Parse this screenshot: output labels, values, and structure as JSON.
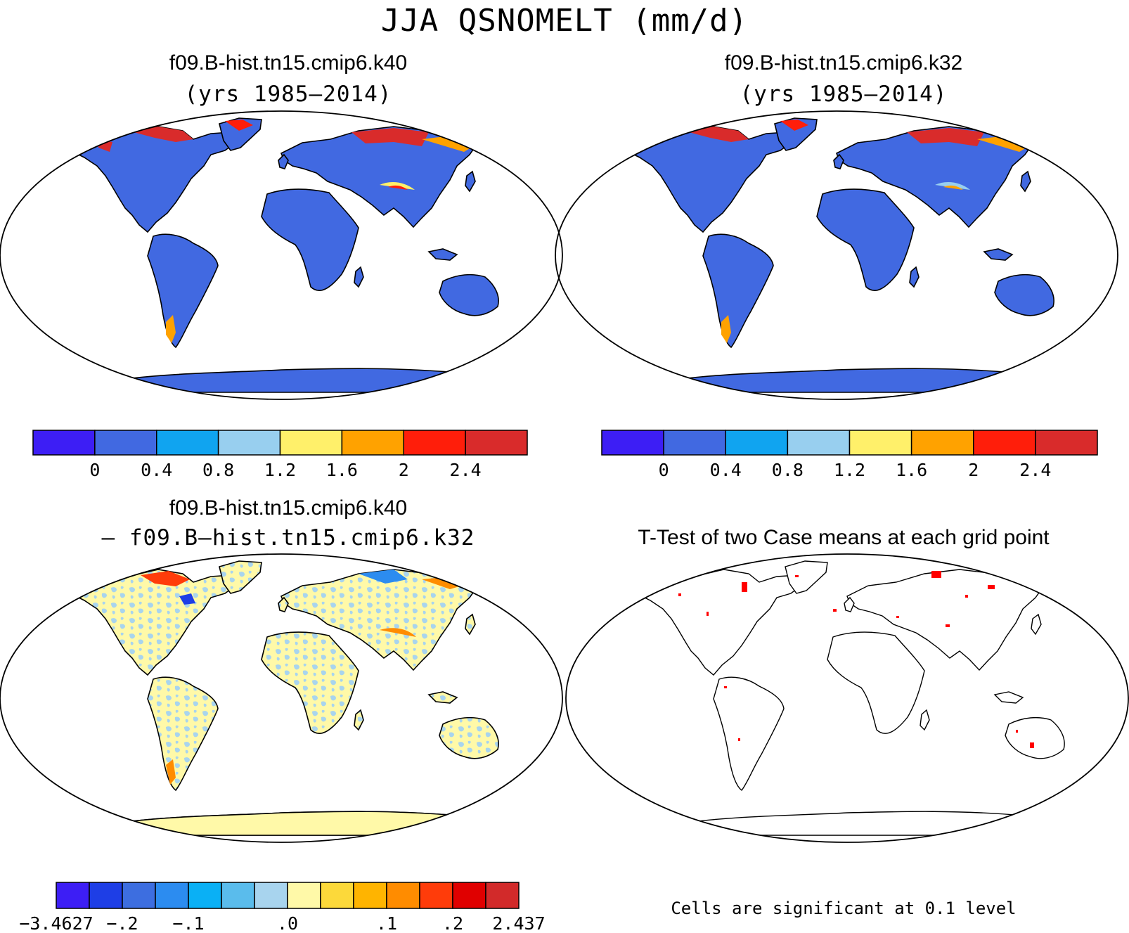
{
  "main_title": "JJA QSNOMELT (mm/d)",
  "panels": [
    {
      "id": "k40",
      "title": "f09.B-hist.tn15.cmip6.k40",
      "subtitle": "(yrs 1985—2014)"
    },
    {
      "id": "k32",
      "title": "f09.B-hist.tn15.cmip6.k32",
      "subtitle": "(yrs 1985—2014)"
    },
    {
      "id": "diff",
      "title": "f09.B-hist.tn15.cmip6.k40",
      "subtitle": "— f09.B—hist.tn15.cmip6.k32"
    },
    {
      "id": "ttest",
      "title": "T-Test of two Case means at each grid point",
      "footnote": "Cells are significant at 0.1 level"
    }
  ],
  "colors": {
    "land_base": "#4169e1",
    "diff_land_a": "#fff9a8",
    "diff_land_b": "#a8d4ee",
    "significant": "#ff0000",
    "coast": "#000000"
  },
  "chart_data": [
    {
      "type": "heatmap",
      "panel": "k40",
      "colorbar": {
        "colors": [
          "#3d1ef5",
          "#4169e1",
          "#10a4f0",
          "#98cfef",
          "#fff06a",
          "#ffa200",
          "#ff1e0a",
          "#d92b2b"
        ],
        "tick_labels": [
          "0",
          "0.4",
          "0.8",
          "1.2",
          "1.6",
          "2",
          "2.4"
        ],
        "levels": [
          0,
          0.4,
          0.8,
          1.2,
          1.6,
          2,
          2.4
        ]
      }
    },
    {
      "type": "heatmap",
      "panel": "k32",
      "colorbar": {
        "colors": [
          "#3d1ef5",
          "#4169e1",
          "#10a4f0",
          "#98cfef",
          "#fff06a",
          "#ffa200",
          "#ff1e0a",
          "#d92b2b"
        ],
        "tick_labels": [
          "0",
          "0.4",
          "0.8",
          "1.2",
          "1.6",
          "2",
          "2.4"
        ],
        "levels": [
          0,
          0.4,
          0.8,
          1.2,
          1.6,
          2,
          2.4
        ]
      }
    },
    {
      "type": "heatmap",
      "panel": "diff",
      "colorbar": {
        "colors": [
          "#3d1ef5",
          "#1e3ee6",
          "#3d6ee0",
          "#2c8cf0",
          "#0ab0f5",
          "#5abcec",
          "#a8d4ee",
          "#fff9a8",
          "#fcd93a",
          "#ffb400",
          "#ff8c00",
          "#ff3c0a",
          "#e00000",
          "#d22a2a"
        ],
        "tick_labels": [
          "−3.4627",
          "−.2",
          "−.1",
          ".0",
          ".1",
          ".2",
          "2.437"
        ],
        "min": -3.4627,
        "max": 2.437
      }
    }
  ]
}
